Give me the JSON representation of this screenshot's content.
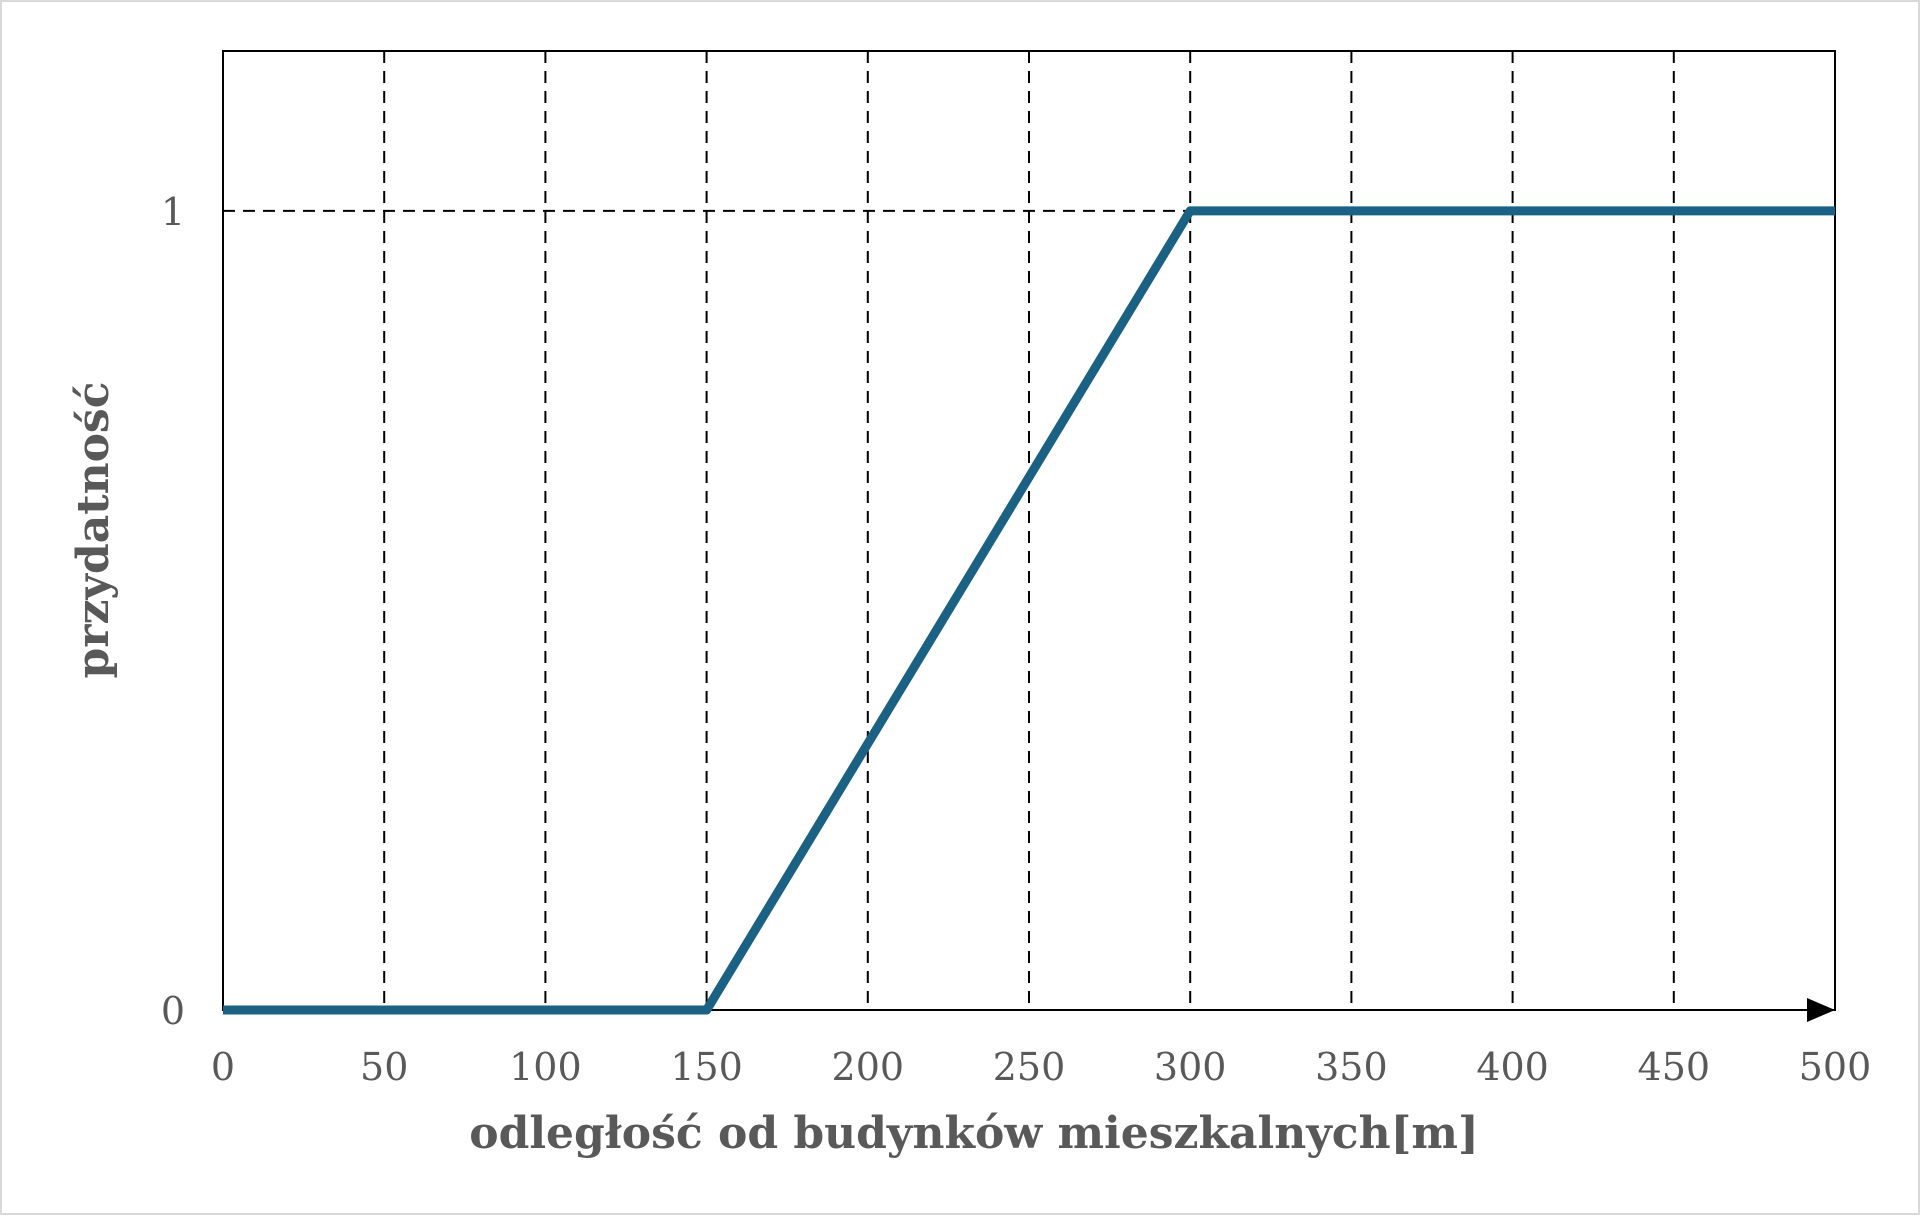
{
  "chart_data": {
    "type": "line",
    "title": "",
    "xlabel": "odległość od budynków mieszkalnych[m]",
    "ylabel": "przydatność",
    "xlim": [
      0,
      500
    ],
    "ylim": [
      0,
      1.2
    ],
    "x_ticks": [
      0,
      50,
      100,
      150,
      200,
      250,
      300,
      350,
      400,
      450,
      500
    ],
    "x_tick_labels": [
      "0",
      "50",
      "100",
      "150",
      "200",
      "250",
      "300",
      "350",
      "400",
      "450",
      "500"
    ],
    "y_ticks": [
      0,
      1
    ],
    "y_tick_labels": [
      "0",
      "1"
    ],
    "grid": "dashed vertical at every x tick, dashed horizontal at y=1",
    "legend": "none",
    "series": [
      {
        "x": [
          0,
          150,
          300,
          500
        ],
        "y": [
          0,
          0,
          1,
          1
        ],
        "color": "#1b6183"
      }
    ]
  }
}
